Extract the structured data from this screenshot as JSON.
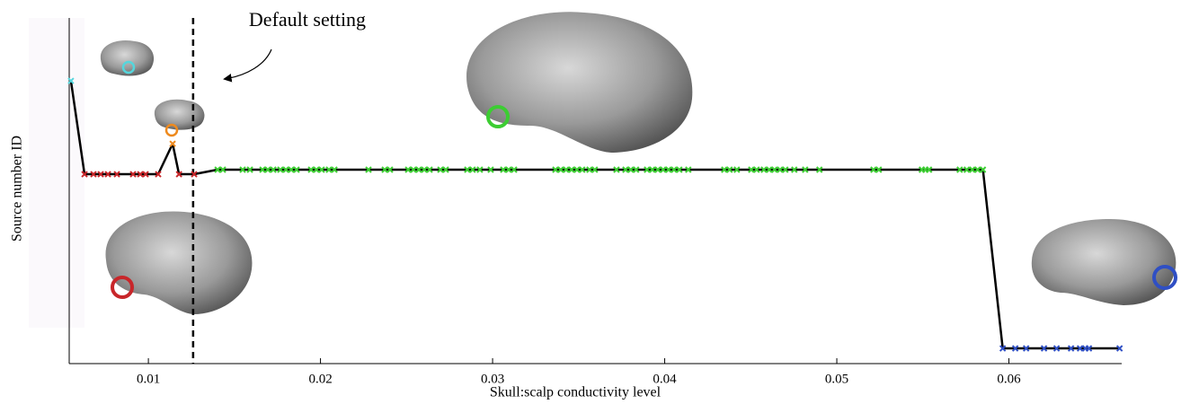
{
  "chart_data": {
    "type": "line",
    "x_label": "Skull:scalp conductivity level",
    "y_label": "Source number ID",
    "annotation": "Default setting",
    "default_x": 0.0126,
    "xlim": [
      0.0054,
      0.0665
    ],
    "xticks": [
      0.01,
      0.02,
      0.03,
      0.04,
      0.05,
      0.06
    ],
    "ylim": [
      0,
      100
    ],
    "line_color": "#000000",
    "groups": [
      {
        "color": "#55d6dc",
        "x": [
          0.0055
        ],
        "values": [
          81.8
        ]
      },
      {
        "color": "#c8262a",
        "x": [
          0.00629,
          0.00681,
          0.00723,
          0.00765,
          0.00817,
          0.00911,
          0.00953,
          0.00984,
          0.01057
        ],
        "values": [
          54.8,
          54.8,
          54.8,
          54.8,
          54.8,
          54.8,
          54.8,
          54.8,
          54.8
        ]
      },
      {
        "color": "#ee8a1e",
        "x": [
          0.01141
        ],
        "values": [
          63.6
        ]
      },
      {
        "color": "#c8262a",
        "x": [
          0.01178,
          0.01266
        ],
        "values": [
          54.8,
          54.8
        ]
      },
      {
        "color": "#3ccd32",
        "x": [
          0.01402,
          0.01433,
          0.01548,
          0.0159,
          0.01663,
          0.01694,
          0.01726,
          0.01767,
          0.01799,
          0.0183,
          0.01861,
          0.01945,
          0.01976,
          0.02007,
          0.02049,
          0.02081,
          0.02279,
          0.02373,
          0.02404,
          0.02509,
          0.0254,
          0.02571,
          0.02603,
          0.02634,
          0.02697,
          0.02728,
          0.02853,
          0.02884,
          0.02926,
          0.02989,
          0.03062,
          0.03093,
          0.03125,
          0.03365,
          0.03396,
          0.03427,
          0.03459,
          0.0349,
          0.03521,
          0.03563,
          0.03594,
          0.0372,
          0.03772,
          0.03803,
          0.03834,
          0.03897,
          0.03928,
          0.0396,
          0.03991,
          0.04022,
          0.04054,
          0.04085,
          0.04137,
          0.04346,
          0.04377,
          0.04419,
          0.04503,
          0.04534,
          0.04576,
          0.04607,
          0.04638,
          0.0467,
          0.04701,
          0.04753,
          0.04816,
          0.04899,
          0.05213,
          0.05244,
          0.05494,
          0.05515,
          0.05536,
          0.05714,
          0.05755,
          0.05787,
          0.05818,
          0.05849
        ],
        "values": [
          56.1,
          56.1,
          56.1,
          56.1,
          56.1,
          56.1,
          56.1,
          56.1,
          56.1,
          56.1,
          56.1,
          56.1,
          56.1,
          56.1,
          56.1,
          56.1,
          56.1,
          56.1,
          56.1,
          56.1,
          56.1,
          56.1,
          56.1,
          56.1,
          56.1,
          56.1,
          56.1,
          56.1,
          56.1,
          56.1,
          56.1,
          56.1,
          56.1,
          56.1,
          56.1,
          56.1,
          56.1,
          56.1,
          56.1,
          56.1,
          56.1,
          56.1,
          56.1,
          56.1,
          56.1,
          56.1,
          56.1,
          56.1,
          56.1,
          56.1,
          56.1,
          56.1,
          56.1,
          56.1,
          56.1,
          56.1,
          56.1,
          56.1,
          56.1,
          56.1,
          56.1,
          56.1,
          56.1,
          56.1,
          56.1,
          56.1,
          56.1,
          56.1,
          56.1,
          56.1,
          56.1,
          56.1,
          56.1,
          56.1,
          56.1,
          56.1
        ]
      },
      {
        "color": "#2f4fc4",
        "x": [
          0.05964,
          0.06037,
          0.061,
          0.06204,
          0.06277,
          0.06361,
          0.06413,
          0.06444,
          0.06465,
          0.06643
        ],
        "values": [
          4.4,
          4.4,
          4.4,
          4.4,
          4.4,
          4.4,
          4.4,
          4.4,
          4.4,
          4.4
        ]
      }
    ]
  }
}
